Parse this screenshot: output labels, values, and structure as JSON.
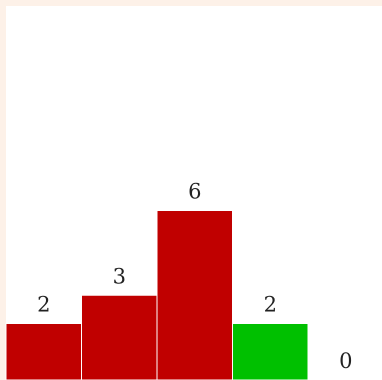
{
  "chart_data": {
    "type": "bar",
    "categories": [
      "",
      "",
      "",
      "",
      ""
    ],
    "values": [
      2,
      3,
      6,
      2,
      0
    ],
    "value_labels": [
      "2",
      "3",
      "6",
      "2",
      "0"
    ],
    "colors": [
      "#c00000",
      "#c00000",
      "#c00000",
      "#00c000",
      "#c00000"
    ],
    "ylim": [
      0,
      8
    ],
    "grid": false,
    "title": "",
    "xlabel": "",
    "ylabel": ""
  },
  "theme": {
    "outer_background": "#fdf1e8",
    "panel_background": "#ffffff",
    "label_color": "#222222"
  }
}
